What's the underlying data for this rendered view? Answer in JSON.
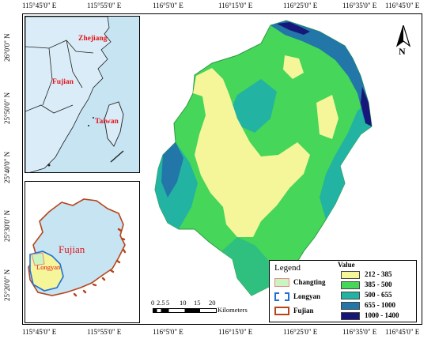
{
  "top_ticks": [
    "115°45'0\" E",
    "115°55'0\" E",
    "116°5'0\" E",
    "116°15'0\" E",
    "116°25'0\" E",
    "116°35'0\" E",
    "116°45'0\" E"
  ],
  "bottom_ticks": [
    "115°45'0\" E",
    "115°55'0\" E",
    "116°5'0\" E",
    "116°15'0\" E",
    "116°25'0\" E",
    "116°35'0\" E",
    "116°45'0\" E"
  ],
  "left_ticks": [
    "26°0'0\" N",
    "25°50'0\" N",
    "25°40'0\" N",
    "25°30'0\" N",
    "25°20'0\" N"
  ],
  "north_label": "N",
  "inset1": {
    "labels": {
      "zhejiang": "Zhejiang",
      "fujian": "Fujian",
      "taiwan": "Taiwan"
    }
  },
  "inset2": {
    "labels": {
      "fujian": "Fujian",
      "longyan": "Longyan"
    }
  },
  "legend": {
    "title": "Legend",
    "items": [
      {
        "label": "Changting",
        "fill": "#c8f5c0",
        "border": "#e88a8a"
      },
      {
        "label": "Longyan",
        "fill": "#ffffff",
        "border": "#1f6fd6"
      },
      {
        "label": "Fujian",
        "fill": "#ffffff",
        "border": "#b5451b"
      }
    ],
    "value_title": "Value",
    "values": [
      {
        "label": "212 - 385",
        "color": "#f5f59a"
      },
      {
        "label": "385 - 500",
        "color": "#46d65a"
      },
      {
        "label": "500 - 655",
        "color": "#22b3a2"
      },
      {
        "label": "655 - 1000",
        "color": "#2276a8"
      },
      {
        "label": "1000 - 1400",
        "color": "#17177a"
      }
    ]
  },
  "scale": {
    "labels": [
      "0",
      "2.5",
      "5",
      "10",
      "15",
      "20"
    ],
    "unit": "Kilometers"
  }
}
